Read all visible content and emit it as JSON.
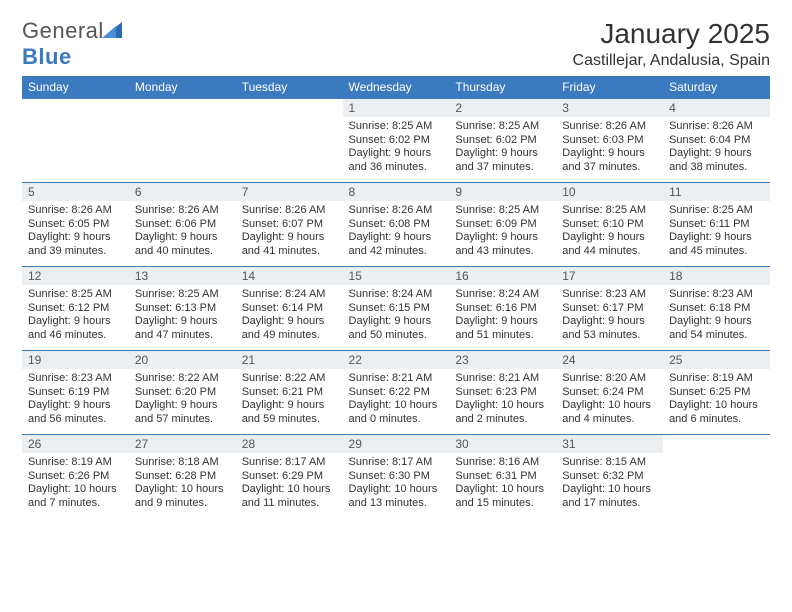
{
  "brand": {
    "name1": "General",
    "name2": "Blue"
  },
  "title": {
    "month": "January 2025",
    "location": "Castillejar, Andalusia, Spain"
  },
  "colors": {
    "accent": "#3b7abf",
    "header_bg": "#3b7abf",
    "daynum_bg": "#eceff1",
    "text": "#333333"
  },
  "daynames": [
    "Sunday",
    "Monday",
    "Tuesday",
    "Wednesday",
    "Thursday",
    "Friday",
    "Saturday"
  ],
  "weeks": [
    [
      {
        "n": "",
        "sr": "",
        "ss": "",
        "dl": ""
      },
      {
        "n": "",
        "sr": "",
        "ss": "",
        "dl": ""
      },
      {
        "n": "",
        "sr": "",
        "ss": "",
        "dl": ""
      },
      {
        "n": "1",
        "sr": "Sunrise: 8:25 AM",
        "ss": "Sunset: 6:02 PM",
        "dl": "Daylight: 9 hours and 36 minutes."
      },
      {
        "n": "2",
        "sr": "Sunrise: 8:25 AM",
        "ss": "Sunset: 6:02 PM",
        "dl": "Daylight: 9 hours and 37 minutes."
      },
      {
        "n": "3",
        "sr": "Sunrise: 8:26 AM",
        "ss": "Sunset: 6:03 PM",
        "dl": "Daylight: 9 hours and 37 minutes."
      },
      {
        "n": "4",
        "sr": "Sunrise: 8:26 AM",
        "ss": "Sunset: 6:04 PM",
        "dl": "Daylight: 9 hours and 38 minutes."
      }
    ],
    [
      {
        "n": "5",
        "sr": "Sunrise: 8:26 AM",
        "ss": "Sunset: 6:05 PM",
        "dl": "Daylight: 9 hours and 39 minutes."
      },
      {
        "n": "6",
        "sr": "Sunrise: 8:26 AM",
        "ss": "Sunset: 6:06 PM",
        "dl": "Daylight: 9 hours and 40 minutes."
      },
      {
        "n": "7",
        "sr": "Sunrise: 8:26 AM",
        "ss": "Sunset: 6:07 PM",
        "dl": "Daylight: 9 hours and 41 minutes."
      },
      {
        "n": "8",
        "sr": "Sunrise: 8:26 AM",
        "ss": "Sunset: 6:08 PM",
        "dl": "Daylight: 9 hours and 42 minutes."
      },
      {
        "n": "9",
        "sr": "Sunrise: 8:25 AM",
        "ss": "Sunset: 6:09 PM",
        "dl": "Daylight: 9 hours and 43 minutes."
      },
      {
        "n": "10",
        "sr": "Sunrise: 8:25 AM",
        "ss": "Sunset: 6:10 PM",
        "dl": "Daylight: 9 hours and 44 minutes."
      },
      {
        "n": "11",
        "sr": "Sunrise: 8:25 AM",
        "ss": "Sunset: 6:11 PM",
        "dl": "Daylight: 9 hours and 45 minutes."
      }
    ],
    [
      {
        "n": "12",
        "sr": "Sunrise: 8:25 AM",
        "ss": "Sunset: 6:12 PM",
        "dl": "Daylight: 9 hours and 46 minutes."
      },
      {
        "n": "13",
        "sr": "Sunrise: 8:25 AM",
        "ss": "Sunset: 6:13 PM",
        "dl": "Daylight: 9 hours and 47 minutes."
      },
      {
        "n": "14",
        "sr": "Sunrise: 8:24 AM",
        "ss": "Sunset: 6:14 PM",
        "dl": "Daylight: 9 hours and 49 minutes."
      },
      {
        "n": "15",
        "sr": "Sunrise: 8:24 AM",
        "ss": "Sunset: 6:15 PM",
        "dl": "Daylight: 9 hours and 50 minutes."
      },
      {
        "n": "16",
        "sr": "Sunrise: 8:24 AM",
        "ss": "Sunset: 6:16 PM",
        "dl": "Daylight: 9 hours and 51 minutes."
      },
      {
        "n": "17",
        "sr": "Sunrise: 8:23 AM",
        "ss": "Sunset: 6:17 PM",
        "dl": "Daylight: 9 hours and 53 minutes."
      },
      {
        "n": "18",
        "sr": "Sunrise: 8:23 AM",
        "ss": "Sunset: 6:18 PM",
        "dl": "Daylight: 9 hours and 54 minutes."
      }
    ],
    [
      {
        "n": "19",
        "sr": "Sunrise: 8:23 AM",
        "ss": "Sunset: 6:19 PM",
        "dl": "Daylight: 9 hours and 56 minutes."
      },
      {
        "n": "20",
        "sr": "Sunrise: 8:22 AM",
        "ss": "Sunset: 6:20 PM",
        "dl": "Daylight: 9 hours and 57 minutes."
      },
      {
        "n": "21",
        "sr": "Sunrise: 8:22 AM",
        "ss": "Sunset: 6:21 PM",
        "dl": "Daylight: 9 hours and 59 minutes."
      },
      {
        "n": "22",
        "sr": "Sunrise: 8:21 AM",
        "ss": "Sunset: 6:22 PM",
        "dl": "Daylight: 10 hours and 0 minutes."
      },
      {
        "n": "23",
        "sr": "Sunrise: 8:21 AM",
        "ss": "Sunset: 6:23 PM",
        "dl": "Daylight: 10 hours and 2 minutes."
      },
      {
        "n": "24",
        "sr": "Sunrise: 8:20 AM",
        "ss": "Sunset: 6:24 PM",
        "dl": "Daylight: 10 hours and 4 minutes."
      },
      {
        "n": "25",
        "sr": "Sunrise: 8:19 AM",
        "ss": "Sunset: 6:25 PM",
        "dl": "Daylight: 10 hours and 6 minutes."
      }
    ],
    [
      {
        "n": "26",
        "sr": "Sunrise: 8:19 AM",
        "ss": "Sunset: 6:26 PM",
        "dl": "Daylight: 10 hours and 7 minutes."
      },
      {
        "n": "27",
        "sr": "Sunrise: 8:18 AM",
        "ss": "Sunset: 6:28 PM",
        "dl": "Daylight: 10 hours and 9 minutes."
      },
      {
        "n": "28",
        "sr": "Sunrise: 8:17 AM",
        "ss": "Sunset: 6:29 PM",
        "dl": "Daylight: 10 hours and 11 minutes."
      },
      {
        "n": "29",
        "sr": "Sunrise: 8:17 AM",
        "ss": "Sunset: 6:30 PM",
        "dl": "Daylight: 10 hours and 13 minutes."
      },
      {
        "n": "30",
        "sr": "Sunrise: 8:16 AM",
        "ss": "Sunset: 6:31 PM",
        "dl": "Daylight: 10 hours and 15 minutes."
      },
      {
        "n": "31",
        "sr": "Sunrise: 8:15 AM",
        "ss": "Sunset: 6:32 PM",
        "dl": "Daylight: 10 hours and 17 minutes."
      },
      {
        "n": "",
        "sr": "",
        "ss": "",
        "dl": ""
      }
    ]
  ]
}
